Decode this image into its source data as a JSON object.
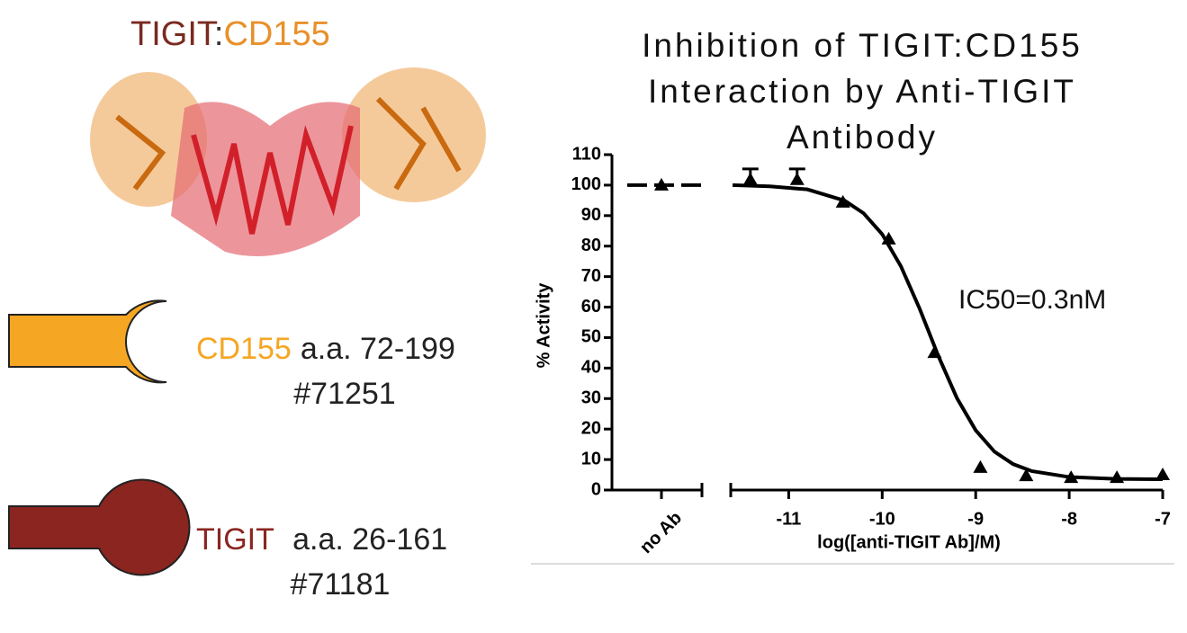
{
  "header": {
    "parts": [
      "TIGIT",
      ":",
      "CD155"
    ]
  },
  "constructs": [
    {
      "name": "CD155",
      "range": "a.a. 72-199",
      "catalog": "#71251"
    },
    {
      "name": "TIGIT",
      "range": "a.a. 26-161",
      "catalog": "#71181"
    }
  ],
  "chart_data": {
    "type": "scatter",
    "title": [
      "Inhibition of TIGIT:CD155",
      "Interaction by Anti-TIGIT",
      "Antibody"
    ],
    "y_label": "% Activity",
    "x_label": "log([anti-TIGIT Ab]/M)",
    "annotation": "IC50=0.3nM",
    "xlim": [
      -11.62,
      -7
    ],
    "ylim": [
      0,
      110
    ],
    "xticks": [
      -11,
      -10,
      -9,
      -8,
      -7
    ],
    "yticks": [
      0,
      10,
      20,
      30,
      40,
      50,
      60,
      70,
      80,
      90,
      100,
      110
    ],
    "control": {
      "label": "no Ab",
      "value": 100
    },
    "series": [
      {
        "color": "#000000",
        "x": [
          -11.41,
          -10.91,
          -10.42,
          -9.93,
          -9.44,
          -8.95,
          -8.46,
          -7.98,
          -7.49,
          -7.0
        ],
        "values": [
          101.8,
          101.8,
          94.4,
          82.3,
          45.1,
          7.4,
          4.7,
          4.1,
          4.1,
          5.0
        ],
        "errors": [
          3.5,
          3.5,
          null,
          null,
          null,
          null,
          null,
          null,
          null,
          null
        ]
      }
    ],
    "fit": {
      "x": [
        -11.6,
        -11.2,
        -10.8,
        -10.4,
        -10.2,
        -10,
        -9.8,
        -9.6,
        -9.5,
        -9.4,
        -9.2,
        -9,
        -8.8,
        -8.6,
        -8.4,
        -8,
        -7.5,
        -7
      ],
      "values": [
        100.0,
        99.6,
        98.6,
        94.9,
        90.8,
        83.9,
        73.4,
        59.5,
        51.75,
        44.0,
        30.1,
        19.6,
        12.6,
        8.5,
        6.2,
        4.26,
        3.65,
        3.53
      ]
    }
  }
}
